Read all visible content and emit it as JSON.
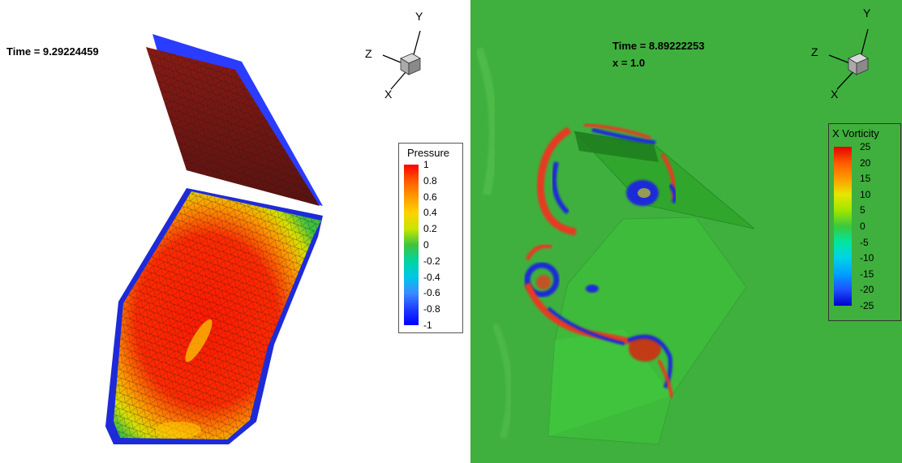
{
  "left_view": {
    "time_label": "Time = 9.29224459",
    "axes": {
      "y": "Y",
      "z": "Z",
      "x": "X"
    },
    "legend": {
      "title": "Pressure",
      "ticks": [
        "1",
        "0.8",
        "0.6",
        "0.4",
        "0.2",
        "0",
        "-0.2",
        "-0.4",
        "-0.6",
        "-0.8",
        "-1"
      ],
      "colors": [
        "#ff0000",
        "#ff5a00",
        "#ff9a00",
        "#ffd200",
        "#c8e600",
        "#3ec43e",
        "#00d4a0",
        "#00c8e6",
        "#3a8cff",
        "#1e3cff",
        "#0000ff"
      ]
    }
  },
  "right_view": {
    "time_label": "Time = 8.89222253",
    "x_label": "x = 1.0",
    "axes": {
      "y": "Y",
      "z": "Z",
      "x": "X"
    },
    "legend": {
      "title": "X Vorticity",
      "ticks": [
        "25",
        "20",
        "15",
        "10",
        "5",
        "0",
        "-5",
        "-10",
        "-15",
        "-20",
        "-25"
      ],
      "colors": [
        "#e60000",
        "#ff5a00",
        "#ff9a00",
        "#e6e600",
        "#a0e600",
        "#3cc83c",
        "#00e6a0",
        "#00d2e6",
        "#00a0ff",
        "#1e50ff",
        "#0000cc"
      ]
    }
  }
}
